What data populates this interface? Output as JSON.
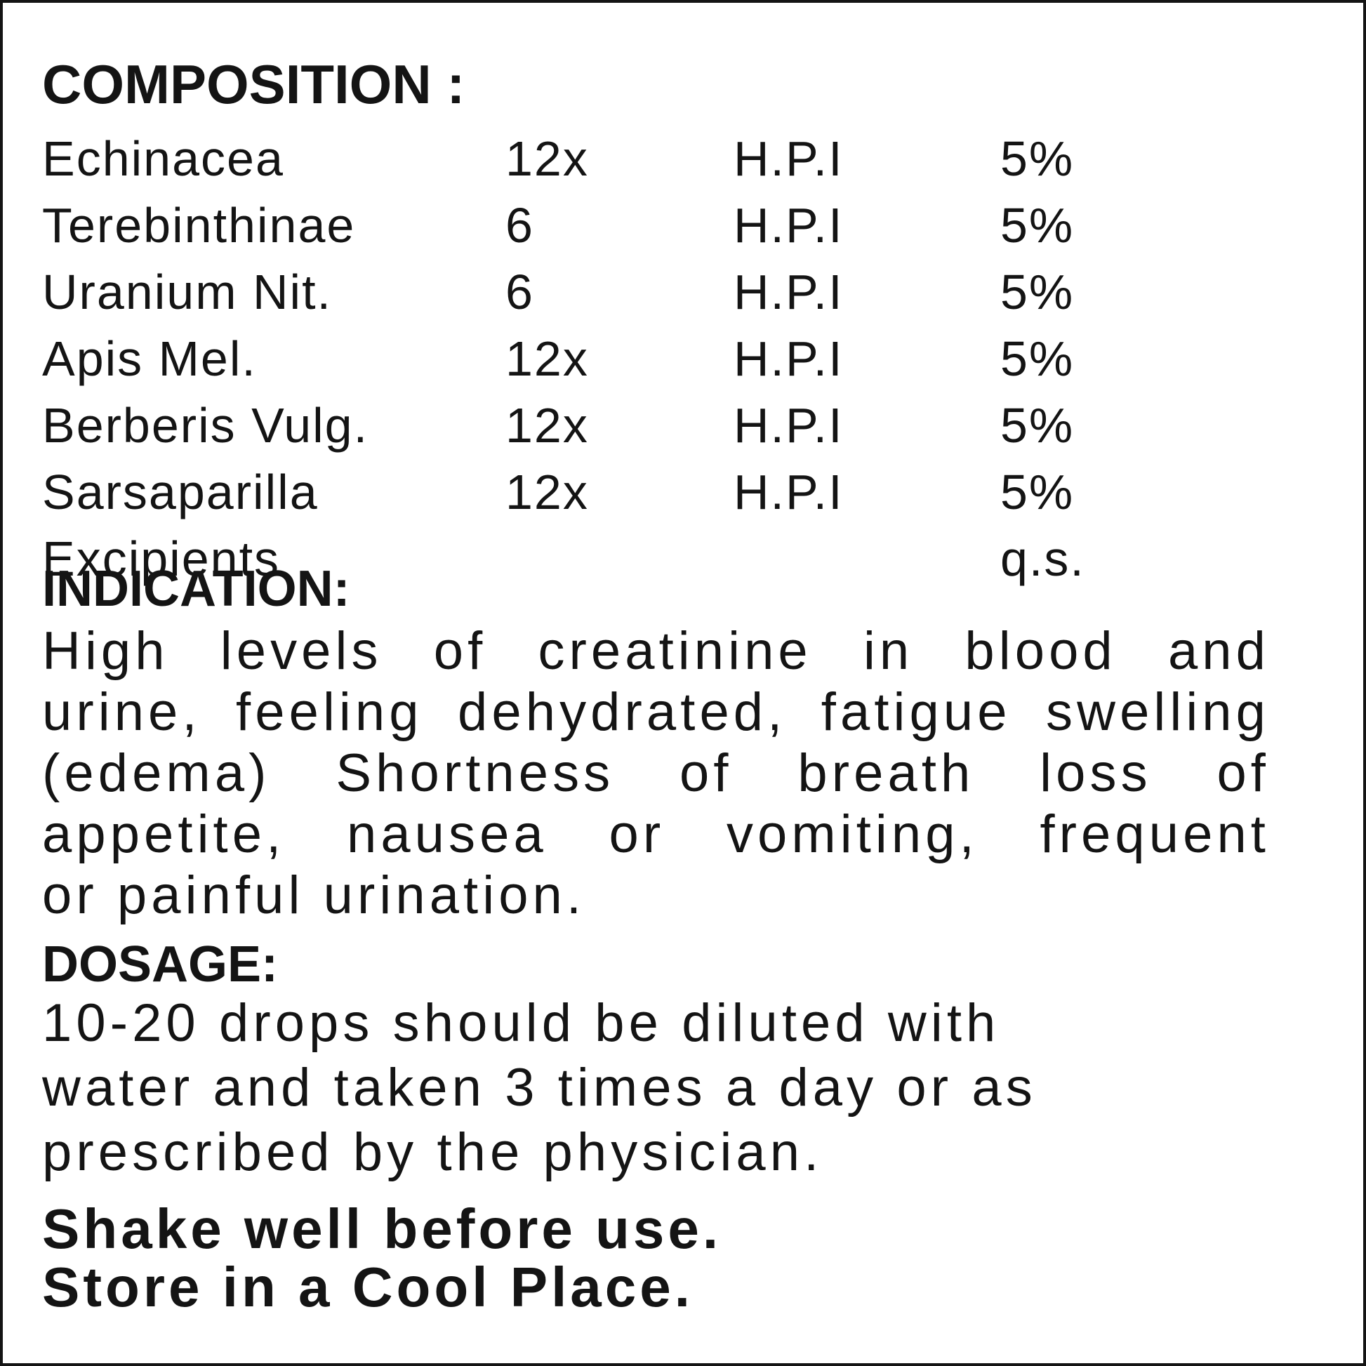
{
  "colors": {
    "background": "#ffffff",
    "text": "#141414",
    "border": "#141414"
  },
  "label": {
    "composition": {
      "heading": "COMPOSITION :",
      "rows": [
        {
          "name": "Echinacea",
          "potency": "12x",
          "ref": "H.P.I",
          "percent": "5%"
        },
        {
          "name": "Terebinthinae",
          "potency": "6",
          "ref": "H.P.I",
          "percent": "5%"
        },
        {
          "name": "Uranium Nit.",
          "potency": "6",
          "ref": "H.P.I",
          "percent": "5%"
        },
        {
          "name": "Apis Mel.",
          "potency": "12x",
          "ref": "H.P.I",
          "percent": "5%"
        },
        {
          "name": "Berberis Vulg.",
          "potency": "12x",
          "ref": "H.P.I",
          "percent": "5%"
        },
        {
          "name": "Sarsaparilla",
          "potency": "12x",
          "ref": "H.P.I",
          "percent": "5%"
        },
        {
          "name": "Excipients",
          "potency": "",
          "ref": "",
          "percent": "q.s."
        }
      ]
    },
    "indication": {
      "heading": "INDICATION:",
      "lines": [
        "High levels of creatinine in blood and",
        "urine, feeling dehydrated, fatigue swelling",
        "(edema) Shortness of breath loss of",
        "appetite, nausea or vomiting, frequent",
        "or painful urination."
      ]
    },
    "dosage": {
      "heading": "DOSAGE:",
      "lines": [
        "10-20 drops should be diluted with",
        "water and taken 3 times a day or as",
        "prescribed by the physician."
      ]
    },
    "notes": [
      "Shake well before use.",
      "Store in a Cool Place."
    ]
  }
}
